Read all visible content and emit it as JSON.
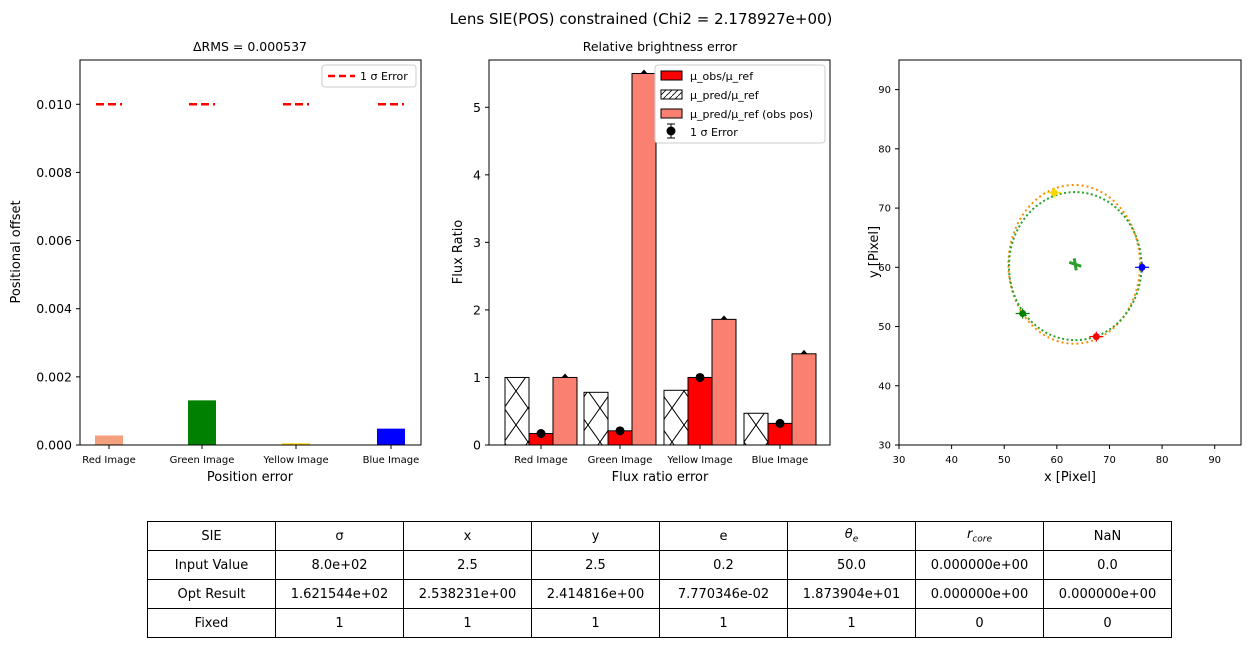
{
  "figure": {
    "suptitle": "Lens SIE(POS) constrained (Chi2 = 2.178927e+00)"
  },
  "chart_data": [
    {
      "type": "bar",
      "title": "ΔRMS = 0.000537",
      "xlabel": "Position error",
      "ylabel": "Positional offset",
      "categories": [
        "Red Image",
        "Green Image",
        "Yellow Image",
        "Blue Image"
      ],
      "values": [
        0.00028,
        0.00131,
        5e-05,
        0.00048
      ],
      "bar_colors": [
        "#f4a07c",
        "#008000",
        "#ffd700",
        "#0000ff"
      ],
      "error_level": 0.01,
      "ylim": [
        0,
        0.0113
      ],
      "yticks": [
        "0.000",
        "0.002",
        "0.004",
        "0.006",
        "0.008",
        "0.010"
      ],
      "ytick_values": [
        0,
        0.002,
        0.004,
        0.006,
        0.008,
        0.01
      ],
      "legend": {
        "entries": [
          "1 σ Error"
        ],
        "placement": "top-right"
      },
      "grid": false
    },
    {
      "type": "bar",
      "title": "Relative brightness error",
      "xlabel": "Flux ratio error",
      "ylabel": "Flux Ratio",
      "categories": [
        "Red Image",
        "Green Image",
        "Yellow Image",
        "Blue Image"
      ],
      "series": [
        {
          "name": "μ_obs/μ_ref",
          "values": [
            0.17,
            0.21,
            1.0,
            0.32
          ],
          "color": "#ff0000"
        },
        {
          "name": "μ_pred/μ_ref",
          "values": [
            1.0,
            0.78,
            0.81,
            0.47
          ],
          "color": "#ffffff"
        },
        {
          "name": "μ_pred/μ_ref (obs pos)",
          "values": [
            1.0,
            5.5,
            1.86,
            1.35
          ],
          "color": "#fa8072"
        }
      ],
      "error_points": [
        0.17,
        0.21,
        1.0,
        0.32
      ],
      "ylim": [
        0,
        5.7
      ],
      "yticks": [
        "0",
        "1",
        "2",
        "3",
        "4",
        "5"
      ],
      "ytick_values": [
        0,
        1,
        2,
        3,
        4,
        5
      ],
      "legend": {
        "entries": [
          "μ_obs/μ_ref",
          "μ_pred/μ_ref",
          "μ_pred/μ_ref (obs pos)",
          "1 σ Error"
        ],
        "placement": "top-right"
      },
      "grid": false
    },
    {
      "type": "scatter",
      "title": "",
      "xlabel": "x [Pixel]",
      "ylabel": "y [Pixel]",
      "xlim": [
        30,
        95
      ],
      "ylim": [
        30,
        95
      ],
      "xticks": [
        "30",
        "40",
        "50",
        "60",
        "70",
        "80",
        "90"
      ],
      "xtick_values": [
        30,
        40,
        50,
        60,
        70,
        80,
        90
      ],
      "yticks": [
        "30",
        "40",
        "50",
        "60",
        "70",
        "80",
        "90"
      ],
      "ytick_values": [
        30,
        40,
        50,
        60,
        70,
        80,
        90
      ],
      "critical_curve": {
        "center": [
          63.5,
          60.2
        ],
        "rx": 12.6,
        "ry": 12.5,
        "color": "#2ca02c"
      },
      "caustic_curve": {
        "center": [
          63.3,
          60.5
        ],
        "rx": 12.5,
        "ry": 13.4,
        "color": "#ff8c00"
      },
      "lens_center": {
        "x": 63.5,
        "y": 60.5,
        "color": "#2ca02c"
      },
      "images": [
        {
          "name": "Red Image",
          "x": 67.5,
          "y": 48.3,
          "color": "#ff0000"
        },
        {
          "name": "Green Image",
          "x": 53.5,
          "y": 52.2,
          "color": "#008000"
        },
        {
          "name": "Yellow Image",
          "x": 59.5,
          "y": 72.6,
          "color": "#ffd700"
        },
        {
          "name": "Blue Image",
          "x": 76.2,
          "y": 60.0,
          "color": "#0000ff"
        }
      ],
      "grid": false
    }
  ],
  "table": {
    "header": [
      "SIE",
      "σ",
      "x",
      "y",
      "e",
      "θ",
      "r",
      "NaN"
    ],
    "header_subscripts": [
      "",
      "",
      "",
      "",
      "",
      "e",
      "core",
      ""
    ],
    "rows": [
      [
        "Input Value",
        "8.0e+02",
        "2.5",
        "2.5",
        "0.2",
        "50.0",
        "0.000000e+00",
        "0.0"
      ],
      [
        "Opt Result",
        "1.621544e+02",
        "2.538231e+00",
        "2.414816e+00",
        "7.770346e-02",
        "1.873904e+01",
        "0.000000e+00",
        "0.000000e+00"
      ],
      [
        "Fixed",
        "1",
        "1",
        "1",
        "1",
        "1",
        "0",
        "0"
      ]
    ]
  }
}
